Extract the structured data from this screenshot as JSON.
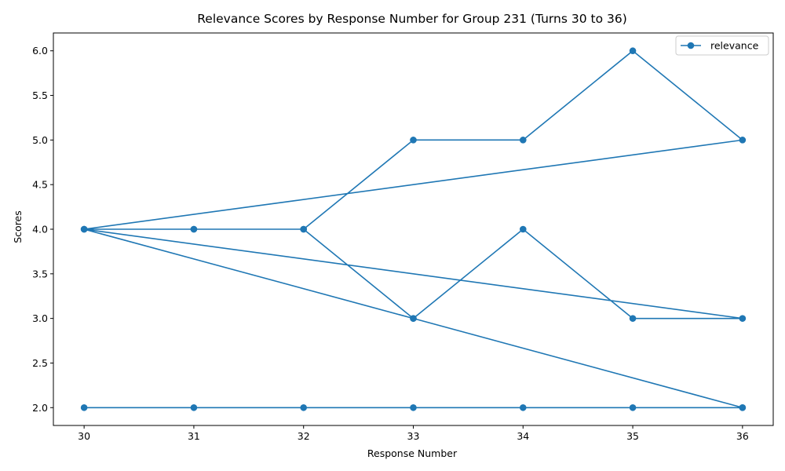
{
  "chart_data": {
    "type": "line",
    "title": "Relevance Scores by Response Number for Group 231 (Turns 30 to 36)",
    "xlabel": "Response Number",
    "ylabel": "Scores",
    "xlim": [
      29.72,
      36.28
    ],
    "ylim": [
      1.8,
      6.2
    ],
    "xticks": [
      30,
      31,
      32,
      33,
      34,
      35,
      36
    ],
    "yticks": [
      2.0,
      2.5,
      3.0,
      3.5,
      4.0,
      4.5,
      5.0,
      5.5,
      6.0
    ],
    "grid": false,
    "legend_position": "top-right",
    "color": "#1f77b4",
    "series": [
      {
        "name": "relevance",
        "x": [
          30,
          31,
          32,
          33,
          34,
          35,
          36,
          30,
          31,
          32,
          33,
          34,
          35,
          36,
          30,
          31,
          32,
          33,
          34,
          35,
          36,
          30,
          31,
          32,
          33,
          34,
          35,
          36
        ],
        "y": [
          4,
          4,
          4,
          5,
          5,
          6,
          5,
          4,
          4,
          4,
          3,
          4,
          3,
          3,
          4,
          null,
          null,
          3,
          null,
          null,
          2,
          2,
          2,
          2,
          2,
          2,
          2,
          2
        ]
      }
    ]
  }
}
